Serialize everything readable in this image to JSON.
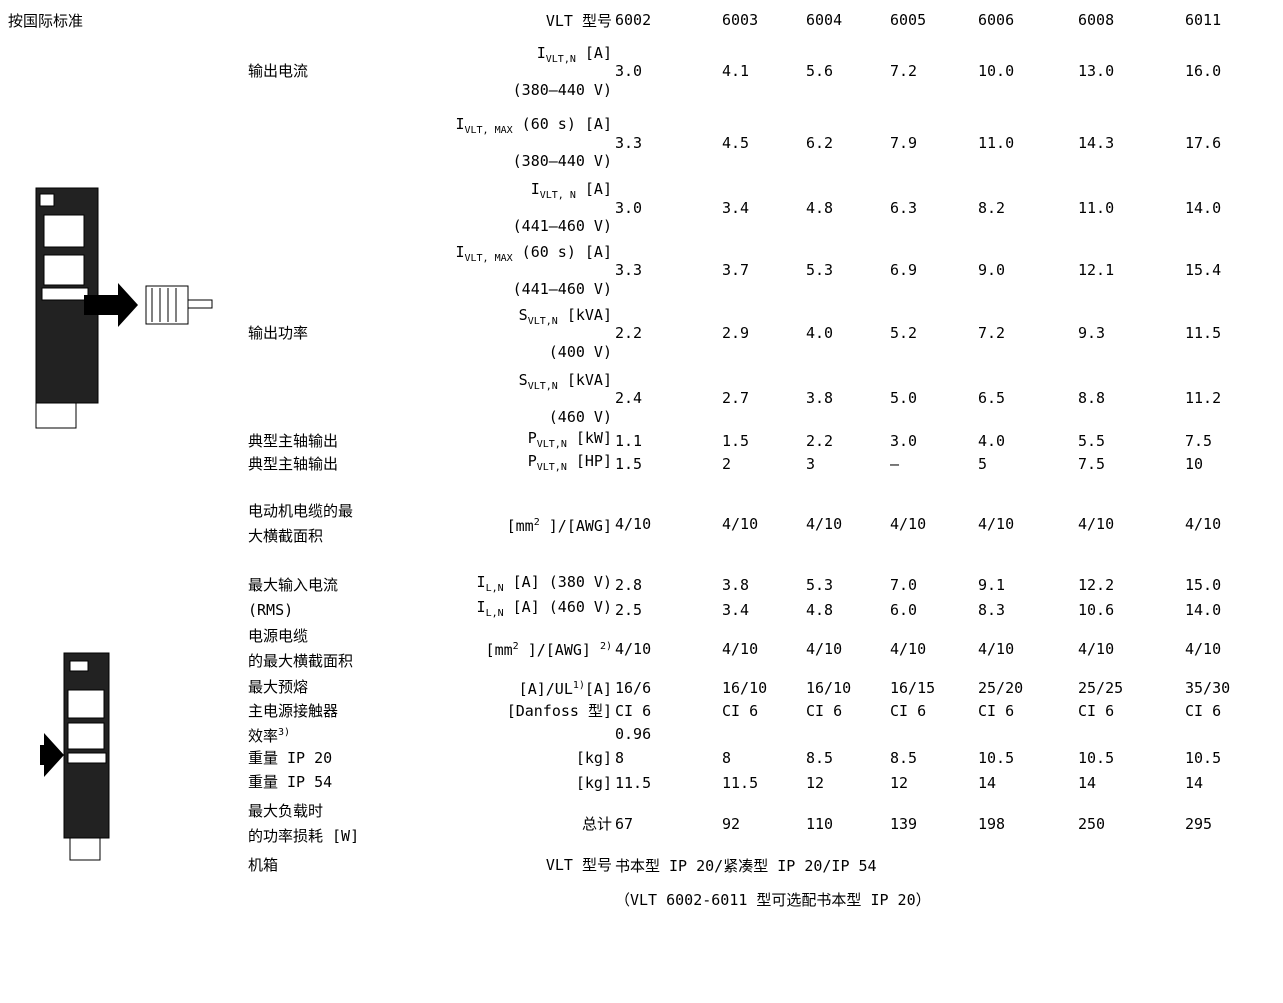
{
  "header": {
    "standard": "按国际标准",
    "model_label": "VLT 型号",
    "models": [
      "6002",
      "6003",
      "6004",
      "6005",
      "6006",
      "6008",
      "6011"
    ]
  },
  "rows": [
    {
      "name": [
        "输出电流"
      ],
      "spec": {
        "main": "I",
        "sub": "VLT,N",
        "rest": " [A]",
        "line2": "(380–440 V)"
      },
      "values": [
        "3.0",
        "4.1",
        "5.6",
        "7.2",
        "10.0",
        "13.0",
        "16.0"
      ]
    },
    {
      "spec": {
        "main": "I",
        "sub": "VLT, MAX",
        "rest": " (60 s) [A]",
        "line2": "(380–440 V)"
      },
      "values": [
        "3.3",
        "4.5",
        "6.2",
        "7.9",
        "11.0",
        "14.3",
        "17.6"
      ]
    },
    {
      "spec": {
        "main": "I",
        "sub": "VLT, N",
        "rest": " [A]",
        "line2": "(441–460 V)"
      },
      "values": [
        "3.0",
        "3.4",
        "4.8",
        "6.3",
        "8.2",
        "11.0",
        "14.0"
      ]
    },
    {
      "spec": {
        "main": "I",
        "sub": "VLT, MAX",
        "rest": " (60 s) [A]",
        "line2": "(441–460 V)"
      },
      "values": [
        "3.3",
        "3.7",
        "5.3",
        "6.9",
        "9.0",
        "12.1",
        "15.4"
      ]
    },
    {
      "name": [
        "输出功率"
      ],
      "spec": {
        "main": "S",
        "sub": "VLT,N",
        "rest": " [kVA]",
        "line2": "(400 V)"
      },
      "values": [
        "2.2",
        "2.9",
        "4.0",
        "5.2",
        "7.2",
        "9.3",
        "11.5"
      ]
    },
    {
      "spec": {
        "main": "S",
        "sub": "VLT,N",
        "rest": " [kVA]",
        "line2": "(460 V)"
      },
      "values": [
        "2.4",
        "2.7",
        "3.8",
        "5.0",
        "6.5",
        "8.8",
        "11.2"
      ]
    },
    {
      "name": [
        "典型主轴输出"
      ],
      "spec": {
        "main": "P",
        "sub": "VLT,N",
        "rest": " [kW]"
      },
      "values": [
        "1.1",
        "1.5",
        "2.2",
        "3.0",
        "4.0",
        "5.5",
        "7.5"
      ]
    },
    {
      "name": [
        "典型主轴输出"
      ],
      "spec": {
        "main": "P",
        "sub": "VLT,N",
        "rest": " [HP]"
      },
      "values": [
        "1.5",
        "2",
        "3",
        "–",
        "5",
        "7.5",
        "10"
      ]
    },
    {
      "name": [
        "电动机电缆的最",
        "大横截面积"
      ],
      "spec": {
        "main": "[mm",
        "sup": "2",
        "rest": " ]/[AWG]"
      },
      "values": [
        "4/10",
        "4/10",
        "4/10",
        "4/10",
        "4/10",
        "4/10",
        "4/10"
      ]
    },
    {
      "name": [
        "最大输入电流"
      ],
      "spec": {
        "main": "I",
        "sub": "L,N",
        "rest": " [A] (380 V)"
      },
      "values": [
        "2.8",
        "3.8",
        "5.3",
        "7.0",
        "9.1",
        "12.2",
        "15.0"
      ]
    },
    {
      "name": [
        "(RMS)"
      ],
      "spec": {
        "main": "I",
        "sub": "L,N",
        "rest": " [A] (460 V)"
      },
      "values": [
        "2.5",
        "3.4",
        "4.8",
        "6.0",
        "8.3",
        "10.6",
        "14.0"
      ]
    },
    {
      "name": [
        "电源电缆",
        "的最大横截面积"
      ],
      "spec": {
        "main": "[mm",
        "sup": "2",
        "rest": " ]/[AWG] ",
        "tail": "2)"
      },
      "values": [
        "4/10",
        "4/10",
        "4/10",
        "4/10",
        "4/10",
        "4/10",
        "4/10"
      ]
    },
    {
      "name": [
        "最大预熔"
      ],
      "spec": {
        "main": "[A]/UL",
        "sup": "1)",
        "rest": "[A]"
      },
      "values": [
        "16/6",
        "16/10",
        "16/10",
        "16/15",
        "25/20",
        "25/25",
        "35/30"
      ]
    },
    {
      "name": [
        "主电源接触器"
      ],
      "spec": {
        "main": "[Danfoss 型]"
      },
      "values": [
        "CI 6",
        "CI 6",
        "CI 6",
        "CI 6",
        "CI 6",
        "CI 6",
        "CI 6"
      ]
    },
    {
      "name": [
        "效率"
      ],
      "name_sup": "3)",
      "values": [
        "0.96"
      ]
    },
    {
      "name": [
        "重量 IP 20"
      ],
      "spec": {
        "main": "[kg]"
      },
      "values": [
        "8",
        "8",
        "8.5",
        "8.5",
        "10.5",
        "10.5",
        "10.5"
      ]
    },
    {
      "name": [
        "重量 IP 54"
      ],
      "spec": {
        "main": "[kg]"
      },
      "values": [
        "11.5",
        "11.5",
        "12",
        "12",
        "14",
        "14",
        "14"
      ]
    },
    {
      "name": [
        "最大负载时",
        "的功率损耗 [W]"
      ],
      "spec": {
        "main": "总计"
      },
      "values": [
        "67",
        "92",
        "110",
        "139",
        "198",
        "250",
        "295"
      ]
    },
    {
      "name": [
        "机箱"
      ],
      "spec": {
        "main": "VLT 型号"
      },
      "values": [
        "书本型 IP 20/紧凑型 IP 20/IP 54"
      ]
    }
  ],
  "footnote": "（VLT 6002-6011 型可选配书本型 IP 20）"
}
